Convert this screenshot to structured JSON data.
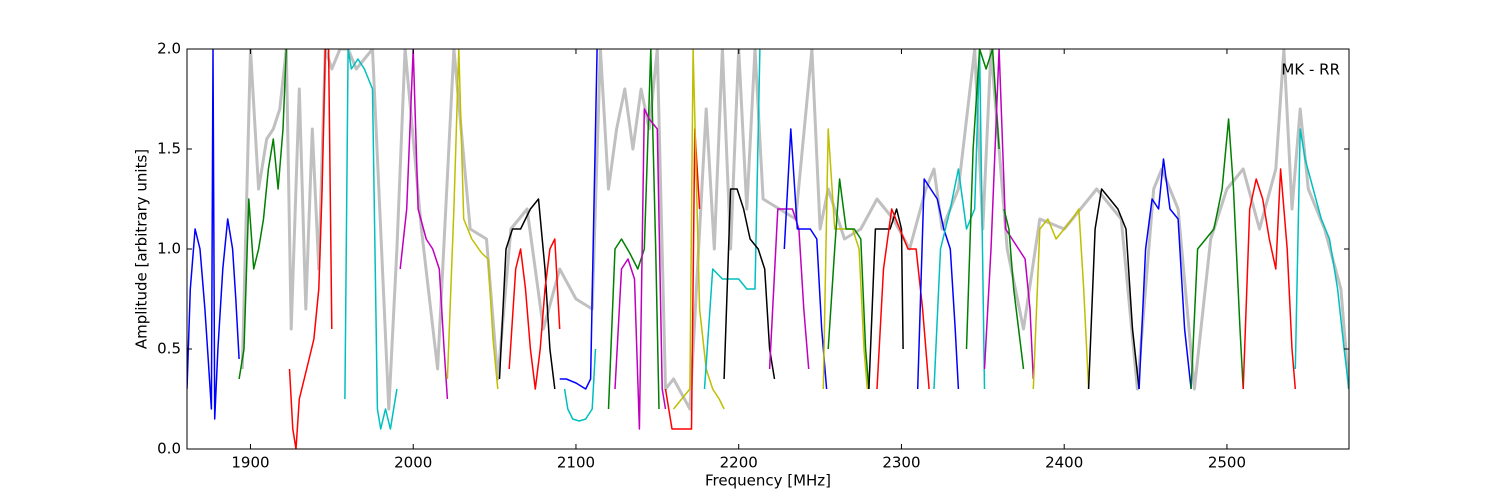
{
  "chart_data": {
    "type": "line",
    "xlabel": "Frequency [MHz]",
    "ylabel": "Amplitude [arbitrary units]",
    "annotation": "MK - RR",
    "xlim": [
      1861,
      2575
    ],
    "ylim": [
      0,
      2
    ],
    "xticks": [
      1900,
      2000,
      2100,
      2200,
      2300,
      2400,
      2500
    ],
    "yticks": [
      {
        "value": 0,
        "label": "0.0"
      },
      0.5,
      {
        "value": 1,
        "label": "1.0"
      },
      1.5,
      {
        "value": 2,
        "label": "2.0"
      }
    ],
    "series": [
      {
        "color": "#c0c0c0",
        "x": [
          1895,
          1900,
          1905,
          1910,
          1914,
          1918,
          1922,
          1925,
          1930,
          1934,
          1938,
          1942,
          1946,
          1950,
          1955,
          1960,
          1965,
          1975,
          1985,
          1990,
          1995,
          2005,
          2015,
          2025,
          2035,
          2045,
          2052,
          2060,
          2070,
          2080,
          2090,
          2100,
          2110,
          2115,
          2120,
          2125,
          2130,
          2135,
          2140,
          2145,
          2150,
          2155,
          2160,
          2170,
          2180,
          2185,
          2190,
          2195,
          2200,
          2205,
          2210,
          2215,
          2225,
          2235,
          2245,
          2250,
          2255,
          2265,
          2275,
          2285,
          2295,
          2305,
          2315,
          2320,
          2325,
          2335,
          2345,
          2350,
          2355,
          2365,
          2375,
          2385,
          2400,
          2410,
          2420,
          2435,
          2445,
          2455,
          2460,
          2470,
          2480,
          2490,
          2500,
          2510,
          2520,
          2530,
          2535,
          2540,
          2545,
          2550,
          2560,
          2570,
          2575
        ],
        "values": [
          0.4,
          2.0,
          1.3,
          1.55,
          1.6,
          1.7,
          2.0,
          0.6,
          1.8,
          0.7,
          1.6,
          0.9,
          2.0,
          1.9,
          2.0,
          2.0,
          1.9,
          2.0,
          0.2,
          1.0,
          2.0,
          1.1,
          0.4,
          2.0,
          1.1,
          1.05,
          0.35,
          1.1,
          1.2,
          0.6,
          0.9,
          0.75,
          0.7,
          2.0,
          1.3,
          1.6,
          1.8,
          1.5,
          1.8,
          1.6,
          2.0,
          0.3,
          0.35,
          0.2,
          1.7,
          1.0,
          2.0,
          1.0,
          2.0,
          1.2,
          2.0,
          1.25,
          1.2,
          1.15,
          2.0,
          1.1,
          1.3,
          1.05,
          1.1,
          1.25,
          1.15,
          1.0,
          1.3,
          1.4,
          1.1,
          1.3,
          2.0,
          1.1,
          2.0,
          1.0,
          0.6,
          1.15,
          1.1,
          1.2,
          1.3,
          1.15,
          0.3,
          1.3,
          1.4,
          1.2,
          0.3,
          1.05,
          1.3,
          1.4,
          1.1,
          1.4,
          2.0,
          1.2,
          1.7,
          1.3,
          1.1,
          0.8,
          0.3
        ]
      },
      {
        "color": "#0000ff",
        "x": [
          1861,
          1863,
          1866,
          1869,
          1872,
          1874,
          1876,
          1877,
          1878,
          1880,
          1883,
          1886,
          1889,
          1891,
          1893
        ],
        "values": [
          0.3,
          0.8,
          1.1,
          1.0,
          0.7,
          0.45,
          0.2,
          2.0,
          0.15,
          0.5,
          0.9,
          1.15,
          1.0,
          0.75,
          0.45
        ]
      },
      {
        "color": "#008000",
        "x": [
          1893,
          1896,
          1899,
          1902,
          1905,
          1908,
          1911,
          1914,
          1917,
          1920,
          1922
        ],
        "values": [
          0.35,
          0.5,
          1.25,
          0.9,
          1.0,
          1.15,
          1.4,
          1.55,
          1.3,
          1.6,
          2.0
        ]
      },
      {
        "color": "#ff0000",
        "x": [
          1924,
          1926,
          1928,
          1930,
          1933,
          1936,
          1939,
          1942,
          1944,
          1946,
          1948,
          1950
        ],
        "values": [
          0.4,
          0.1,
          0.0,
          0.25,
          0.35,
          0.45,
          0.55,
          0.8,
          1.3,
          2.0,
          2.0,
          0.6
        ]
      },
      {
        "color": "#00bfbf",
        "x": [
          1958,
          1960,
          1962,
          1966,
          1970,
          1975,
          1978,
          1980,
          1983,
          1986,
          1990
        ],
        "values": [
          0.25,
          2.0,
          1.9,
          1.95,
          1.9,
          1.8,
          0.2,
          0.1,
          0.2,
          0.1,
          0.3
        ]
      },
      {
        "color": "#bf00bf",
        "x": [
          1992,
          1996,
          2000,
          2003,
          2008,
          2012,
          2016,
          2019,
          2021
        ],
        "values": [
          0.9,
          1.2,
          2.0,
          1.2,
          1.05,
          1.0,
          0.9,
          0.5,
          0.25
        ]
      },
      {
        "color": "#bfbf00",
        "x": [
          2021,
          2025,
          2028,
          2031,
          2036,
          2042,
          2046,
          2049,
          2052
        ],
        "values": [
          0.35,
          1.2,
          2.0,
          1.15,
          1.05,
          0.98,
          0.95,
          0.55,
          0.3
        ]
      },
      {
        "color": "#000000",
        "x": [
          2053,
          2057,
          2061,
          2066,
          2072,
          2077,
          2081,
          2084,
          2087
        ],
        "values": [
          0.35,
          1.0,
          1.1,
          1.1,
          1.2,
          1.25,
          0.9,
          0.5,
          0.3
        ]
      },
      {
        "color": "#ff0000",
        "x": [
          2059,
          2063,
          2066,
          2069,
          2072,
          2075,
          2078,
          2081,
          2084,
          2087,
          2090
        ],
        "values": [
          0.4,
          0.9,
          1.0,
          0.8,
          0.5,
          0.3,
          0.5,
          0.8,
          1.0,
          1.05,
          0.6
        ]
      },
      {
        "color": "#0000ff",
        "x": [
          2090,
          2094,
          2100,
          2106,
          2109,
          2111,
          2113
        ],
        "values": [
          0.35,
          0.35,
          0.33,
          0.3,
          0.35,
          1.2,
          2.0
        ]
      },
      {
        "color": "#00bfbf",
        "x": [
          2093,
          2095,
          2098,
          2102,
          2106,
          2110,
          2112
        ],
        "values": [
          0.3,
          0.2,
          0.15,
          0.14,
          0.15,
          0.2,
          0.5
        ]
      },
      {
        "color": "#008000",
        "x": [
          2120,
          2124,
          2128,
          2133,
          2138,
          2142,
          2146,
          2149,
          2151
        ],
        "values": [
          0.2,
          1.0,
          1.05,
          0.98,
          0.9,
          1.0,
          2.0,
          1.0,
          0.2
        ]
      },
      {
        "color": "#bf00bf",
        "x": [
          2124,
          2128,
          2132,
          2136,
          2139,
          2142,
          2145,
          2150,
          2153,
          2155
        ],
        "values": [
          0.3,
          0.9,
          0.95,
          0.85,
          0.1,
          1.7,
          1.65,
          1.6,
          0.3,
          0.2
        ]
      },
      {
        "color": "#ff0000",
        "x": [
          2155,
          2159,
          2163,
          2168,
          2171,
          2173,
          2176
        ],
        "values": [
          0.3,
          0.1,
          0.1,
          0.1,
          0.1,
          1.6,
          1.2
        ]
      },
      {
        "color": "#bfbf00",
        "x": [
          2160,
          2165,
          2170,
          2172,
          2176,
          2180,
          2184,
          2188,
          2191
        ],
        "values": [
          0.2,
          0.25,
          0.3,
          2.0,
          0.7,
          0.4,
          0.3,
          0.25,
          0.2
        ]
      },
      {
        "color": "#00bfbf",
        "x": [
          2179,
          2184,
          2190,
          2195,
          2200,
          2205,
          2210,
          2213
        ],
        "values": [
          0.3,
          0.9,
          0.85,
          0.85,
          0.85,
          0.8,
          0.8,
          2.0
        ]
      },
      {
        "color": "#000000",
        "x": [
          2191,
          2195,
          2199,
          2203,
          2207,
          2212,
          2216,
          2219,
          2222
        ],
        "values": [
          0.35,
          1.3,
          1.3,
          1.2,
          1.05,
          1.0,
          0.9,
          0.5,
          0.35
        ]
      },
      {
        "color": "#bf00bf",
        "x": [
          2219,
          2224,
          2228,
          2233,
          2237,
          2240,
          2243
        ],
        "values": [
          0.4,
          1.2,
          1.2,
          1.2,
          1.1,
          0.7,
          0.4
        ]
      },
      {
        "color": "#0000ff",
        "x": [
          2228,
          2232,
          2236,
          2240,
          2244,
          2248,
          2251,
          2254
        ],
        "values": [
          1.0,
          1.6,
          1.1,
          1.1,
          1.1,
          1.05,
          0.6,
          0.3
        ]
      },
      {
        "color": "#bfbf00",
        "x": [
          2252,
          2255,
          2259,
          2265,
          2270,
          2274,
          2277,
          2279
        ],
        "values": [
          0.3,
          1.6,
          1.1,
          1.1,
          1.1,
          1.0,
          0.5,
          0.3
        ]
      },
      {
        "color": "#008000",
        "x": [
          2255,
          2259,
          2262,
          2266,
          2271,
          2275,
          2278,
          2280
        ],
        "values": [
          0.5,
          1.0,
          1.35,
          1.1,
          1.1,
          1.05,
          0.5,
          0.3
        ]
      },
      {
        "color": "#000000",
        "x": [
          2280,
          2284,
          2288,
          2293,
          2297,
          2300,
          2301
        ],
        "values": [
          0.3,
          1.1,
          1.1,
          1.1,
          1.2,
          1.1,
          0.5
        ]
      },
      {
        "color": "#ff0000",
        "x": [
          2285,
          2289,
          2294,
          2299,
          2304,
          2309,
          2313,
          2317
        ],
        "values": [
          0.3,
          0.9,
          1.2,
          1.1,
          1.0,
          1.0,
          0.7,
          0.3
        ]
      },
      {
        "color": "#0000ff",
        "x": [
          2310,
          2314,
          2318,
          2322,
          2326,
          2330,
          2333,
          2335
        ],
        "values": [
          0.3,
          1.35,
          1.3,
          1.25,
          1.1,
          1.0,
          0.6,
          0.3
        ]
      },
      {
        "color": "#00bfbf",
        "x": [
          2320,
          2324,
          2330,
          2335,
          2340,
          2345,
          2348,
          2351
        ],
        "values": [
          0.3,
          1.0,
          1.2,
          1.4,
          1.1,
          1.2,
          2.0,
          0.3
        ]
      },
      {
        "color": "#008000",
        "x": [
          2340,
          2344,
          2348,
          2352,
          2356,
          2360
        ],
        "values": [
          0.5,
          1.5,
          2.0,
          1.9,
          2.0,
          1.5
        ]
      },
      {
        "color": "#bf00bf",
        "x": [
          2351,
          2355,
          2360,
          2364,
          2368,
          2372,
          2376,
          2379,
          2381
        ],
        "values": [
          0.4,
          1.0,
          2.0,
          1.1,
          1.05,
          1.0,
          0.95,
          0.7,
          0.35
        ]
      },
      {
        "color": "#008000",
        "x": [
          2363,
          2366,
          2369,
          2372,
          2375
        ],
        "values": [
          1.2,
          1.1,
          0.8,
          0.6,
          0.4
        ]
      },
      {
        "color": "#bfbf00",
        "x": [
          2381,
          2385,
          2390,
          2395,
          2400,
          2405,
          2409,
          2412,
          2415
        ],
        "values": [
          0.3,
          1.1,
          1.15,
          1.05,
          1.1,
          1.15,
          1.2,
          0.8,
          0.3
        ]
      },
      {
        "color": "#000000",
        "x": [
          2415,
          2419,
          2423,
          2428,
          2433,
          2438,
          2442,
          2446
        ],
        "values": [
          0.3,
          1.1,
          1.3,
          1.25,
          1.2,
          1.1,
          0.6,
          0.3
        ]
      },
      {
        "color": "#0000ff",
        "x": [
          2446,
          2450,
          2454,
          2458,
          2461,
          2465,
          2470,
          2474,
          2478
        ],
        "values": [
          0.3,
          1.0,
          1.25,
          1.2,
          1.45,
          1.2,
          1.15,
          0.6,
          0.3
        ]
      },
      {
        "color": "#008000",
        "x": [
          2478,
          2482,
          2487,
          2492,
          2497,
          2501,
          2504,
          2508,
          2510
        ],
        "values": [
          0.3,
          1.0,
          1.05,
          1.1,
          1.3,
          1.65,
          1.3,
          0.6,
          0.3
        ]
      },
      {
        "color": "#ff0000",
        "x": [
          2510,
          2514,
          2518,
          2522,
          2526,
          2530,
          2533,
          2537,
          2540,
          2542
        ],
        "values": [
          0.3,
          1.2,
          1.35,
          1.25,
          1.05,
          0.9,
          1.4,
          1.0,
          0.5,
          0.3
        ]
      },
      {
        "color": "#00bfbf",
        "x": [
          2542,
          2545,
          2548,
          2553,
          2558,
          2563,
          2568,
          2572,
          2575
        ],
        "values": [
          0.4,
          1.6,
          1.45,
          1.3,
          1.15,
          1.05,
          0.8,
          0.5,
          0.3
        ]
      }
    ]
  }
}
